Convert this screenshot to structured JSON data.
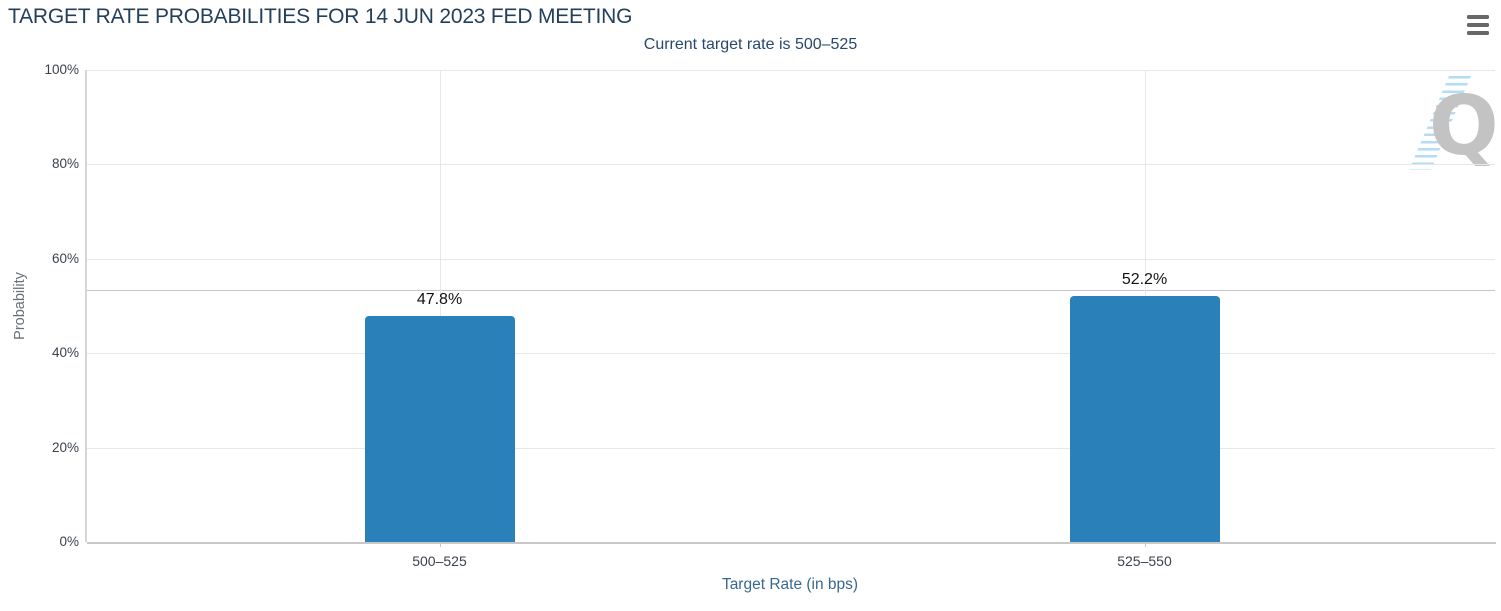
{
  "header": {
    "menu_icon": "hamburger-menu-icon"
  },
  "watermark": {
    "letter": "Q"
  },
  "colors": {
    "title": "#233f5a",
    "subtitle": "#27496b",
    "axis_title": "#38688f",
    "ylabel_text": "#68707a",
    "tick_label": "#3a424c",
    "data_label": "#121212",
    "grid": "#e7e7e7",
    "axis_line": "#c8c8c8",
    "ref_line": "#c6c6c6",
    "bar": "#2a80b8",
    "menu_icon": "#686868",
    "watermark_letter": "#c3c3c3",
    "watermark_stripes": "#b5dcf4"
  },
  "chart_data": {
    "type": "bar",
    "title": "TARGET RATE PROBABILITIES FOR 14 JUN 2023 FED MEETING",
    "subtitle": "Current target rate is 500–525",
    "categories": [
      "500–525",
      "525–550"
    ],
    "values": [
      47.8,
      52.2
    ],
    "value_labels": [
      "47.8%",
      "52.2%"
    ],
    "xlabel": "Target Rate (in bps)",
    "ylabel": "Probability",
    "ylim": [
      0,
      100
    ],
    "yticks": [
      0,
      20,
      40,
      60,
      80,
      100
    ],
    "ytick_labels": [
      "0%",
      "20%",
      "40%",
      "60%",
      "80%",
      "100%"
    ],
    "grid": true,
    "legend": false,
    "reference_line_pct": 53.3
  }
}
